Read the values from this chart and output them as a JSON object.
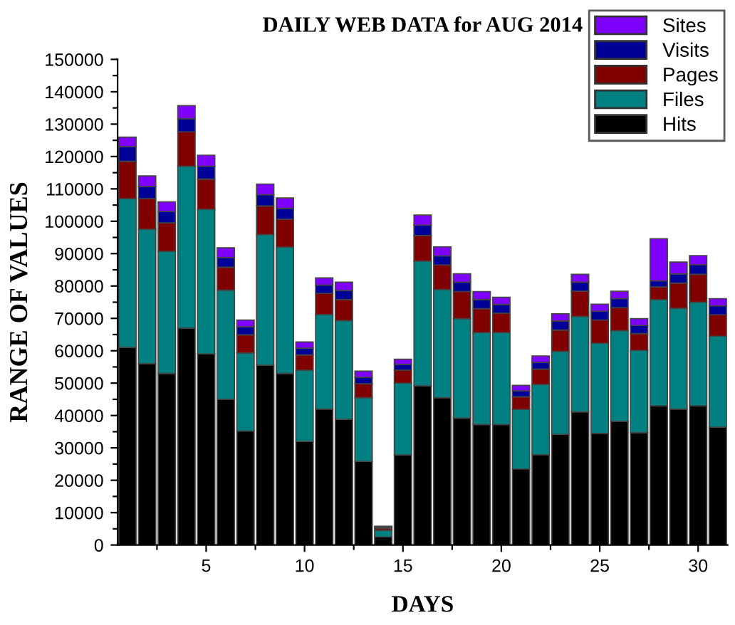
{
  "chart_data": {
    "type": "bar",
    "stacked": true,
    "title": "DAILY WEB DATA for AUG 2014",
    "xlabel": "DAYS",
    "ylabel": "RANGE OF VALUES",
    "x": [
      1,
      2,
      3,
      4,
      5,
      6,
      7,
      8,
      9,
      10,
      11,
      12,
      13,
      14,
      15,
      16,
      17,
      18,
      19,
      20,
      21,
      22,
      23,
      24,
      25,
      26,
      27,
      28,
      29,
      30,
      31
    ],
    "xlim": [
      0.5,
      31.5
    ],
    "xticks": [
      {
        "value": 2.5,
        "label": null
      },
      5,
      {
        "value": 7.5,
        "label": null
      },
      10,
      {
        "value": 12.5,
        "label": null
      },
      15,
      {
        "value": 17.5,
        "label": null
      },
      20,
      {
        "value": 22.5,
        "label": null
      },
      25,
      {
        "value": 27.5,
        "label": null
      },
      30
    ],
    "ylim": [
      0,
      150000
    ],
    "yticks": [
      0,
      {
        "value": 5000,
        "label": null
      },
      10000,
      {
        "value": 15000,
        "label": null
      },
      20000,
      {
        "value": 25000,
        "label": null
      },
      30000,
      {
        "value": 35000,
        "label": null
      },
      40000,
      {
        "value": 45000,
        "label": null
      },
      50000,
      {
        "value": 55000,
        "label": null
      },
      60000,
      {
        "value": 65000,
        "label": null
      },
      70000,
      {
        "value": 75000,
        "label": null
      },
      80000,
      {
        "value": 85000,
        "label": null
      },
      90000,
      {
        "value": 95000,
        "label": null
      },
      100000,
      {
        "value": 105000,
        "label": null
      },
      110000,
      {
        "value": 115000,
        "label": null
      },
      120000,
      {
        "value": 125000,
        "label": null
      },
      130000,
      {
        "value": 135000,
        "label": null
      },
      140000,
      {
        "value": 145000,
        "label": null
      },
      150000
    ],
    "legend": "top right",
    "grid": false,
    "series": [
      {
        "name": "Hits",
        "color": "#000000",
        "values": [
          61000,
          56000,
          53000,
          67000,
          59000,
          45000,
          35200,
          55500,
          53000,
          32000,
          42000,
          38800,
          25800,
          2500,
          27800,
          49200,
          45500,
          39200,
          37200,
          37200,
          23500,
          27900,
          34200,
          41100,
          34500,
          38200,
          34700,
          43000,
          42000,
          43000,
          36400
        ]
      },
      {
        "name": "Files",
        "color": "#008080",
        "values": [
          46000,
          41500,
          37700,
          50000,
          44700,
          33700,
          24100,
          40400,
          39000,
          22000,
          29200,
          30500,
          19700,
          2000,
          22200,
          38500,
          33400,
          30700,
          28400,
          28400,
          18400,
          21700,
          25600,
          29500,
          27800,
          28000,
          25400,
          32800,
          31100,
          32000,
          28100
        ]
      },
      {
        "name": "Pages",
        "color": "#800000",
        "values": [
          11500,
          9500,
          8800,
          10600,
          9300,
          7100,
          5600,
          8800,
          8600,
          4700,
          6500,
          6500,
          4300,
          600,
          4000,
          7900,
          7600,
          8400,
          7400,
          6000,
          3900,
          4700,
          6600,
          7800,
          7200,
          7100,
          5200,
          3900,
          7800,
          8600,
          6600
        ]
      },
      {
        "name": "Visits",
        "color": "#000099",
        "values": [
          4500,
          3700,
          3500,
          4100,
          4000,
          3000,
          2500,
          3500,
          3400,
          2100,
          2600,
          2800,
          2000,
          400,
          1800,
          3200,
          2800,
          2900,
          2800,
          2700,
          1800,
          2100,
          2800,
          2800,
          2700,
          2800,
          2500,
          1900,
          2800,
          3000,
          2800
        ]
      },
      {
        "name": "Sites",
        "color": "#8000ff",
        "values": [
          3000,
          3300,
          3000,
          4000,
          3400,
          3000,
          2100,
          3300,
          3200,
          1900,
          2200,
          2600,
          1900,
          300,
          1600,
          3100,
          2800,
          2600,
          2500,
          2200,
          1700,
          2000,
          2200,
          2400,
          2200,
          2300,
          2100,
          13000,
          3700,
          2800,
          2200
        ]
      }
    ]
  }
}
